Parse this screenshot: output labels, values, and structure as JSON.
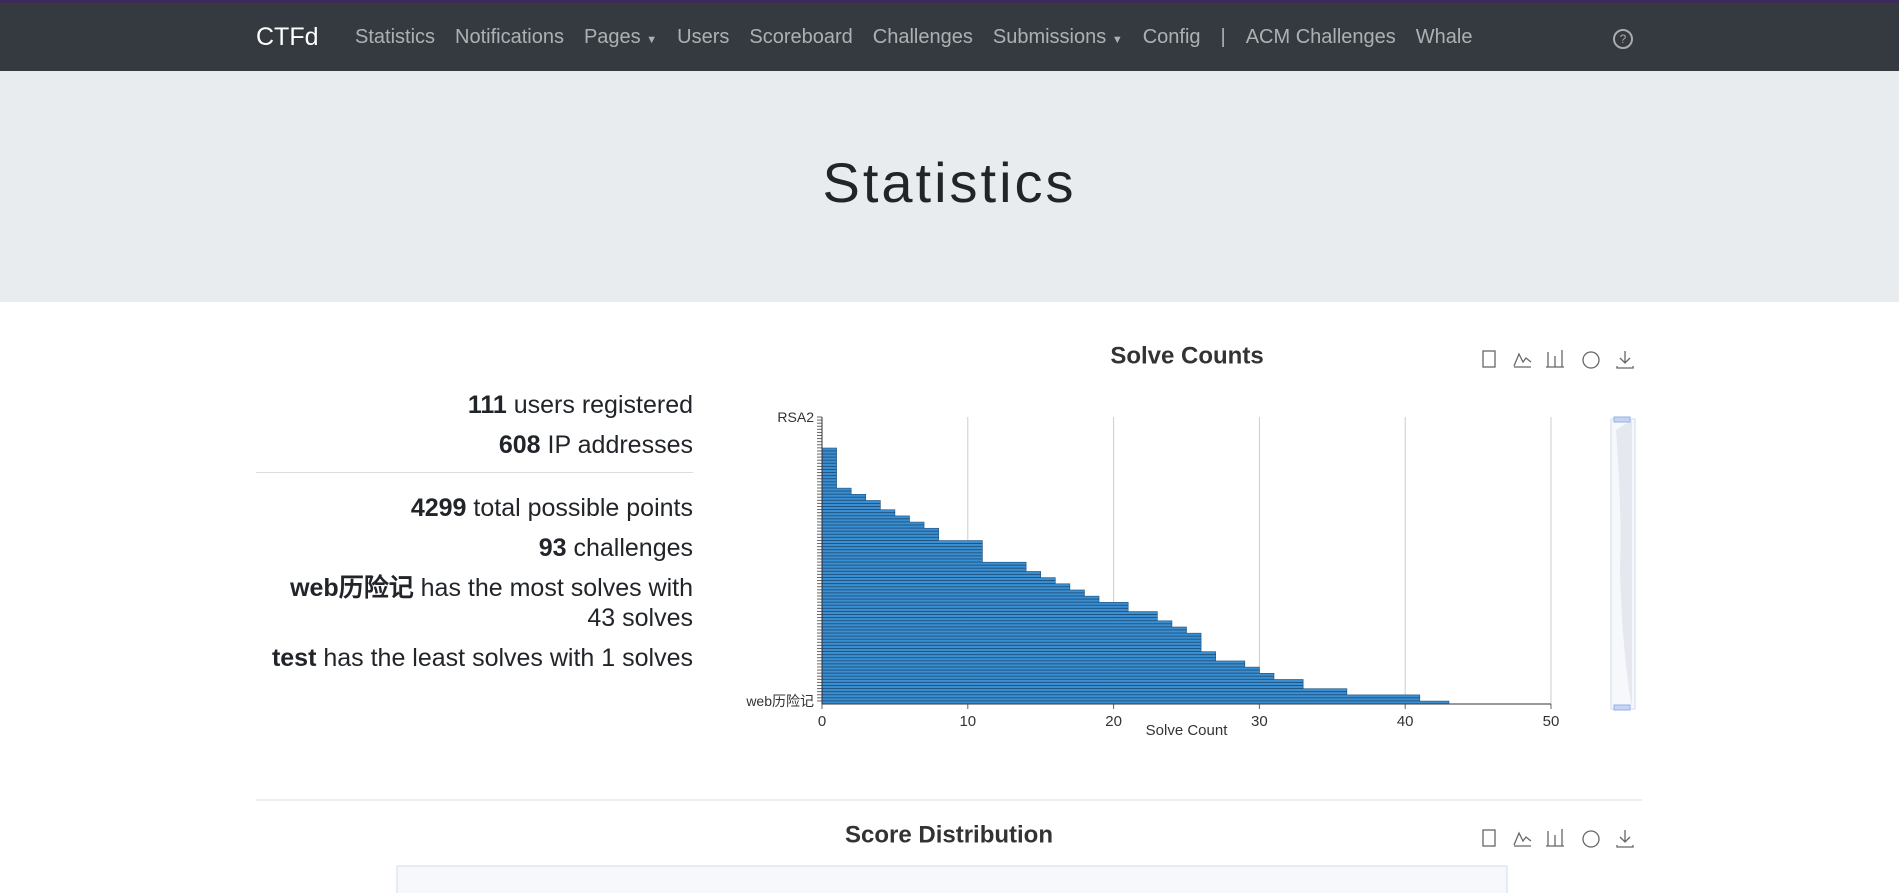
{
  "nav": {
    "brand": "CTFd",
    "items": [
      "Statistics",
      "Notifications",
      "Pages",
      "Users",
      "Scoreboard",
      "Challenges",
      "Submissions",
      "Config",
      "|",
      "ACM Challenges",
      "Whale"
    ]
  },
  "header": {
    "title": "Statistics"
  },
  "stats": [
    {
      "value": "111",
      "text": "users registered"
    },
    {
      "value": "608",
      "text": "IP addresses"
    },
    {
      "value": "4299",
      "text": "total possible points"
    },
    {
      "value": "93",
      "text": "challenges"
    },
    {
      "value": "web历险记",
      "text": "has the most solves with 43 solves"
    },
    {
      "value": "test",
      "text": "has the least solves with 1 solves"
    }
  ],
  "chart_data": {
    "type": "hbar",
    "title": "Solve Counts",
    "xlabel": "Solve Count",
    "color": "#3a8ed2",
    "xlim": [
      0,
      50
    ],
    "xticks": [
      0,
      10,
      20,
      30,
      40,
      50
    ],
    "grid": true,
    "categories": [
      "RSA2",
      null,
      null,
      null,
      null,
      null,
      null,
      null,
      null,
      null,
      null,
      null,
      null,
      null,
      null,
      null,
      null,
      null,
      null,
      null,
      null,
      null,
      null,
      null,
      null,
      null,
      null,
      null,
      null,
      null,
      null,
      null,
      null,
      null,
      null,
      null,
      null,
      null,
      null,
      null,
      null,
      null,
      null,
      null,
      null,
      null,
      null,
      null,
      null,
      null,
      null,
      null,
      null,
      null,
      null,
      null,
      null,
      null,
      null,
      null,
      null,
      null,
      null,
      null,
      null,
      null,
      null,
      null,
      null,
      null,
      null,
      null,
      null,
      null,
      null,
      null,
      null,
      null,
      null,
      null,
      null,
      null,
      null,
      null,
      null,
      null,
      null,
      null,
      null,
      null,
      null,
      null,
      "web历险记"
    ],
    "values": [
      0,
      0,
      0,
      0,
      0,
      0,
      0,
      0,
      0,
      0,
      1,
      1,
      1,
      1,
      1,
      1,
      1,
      1,
      1,
      1,
      1,
      1,
      1,
      2,
      2,
      3,
      3,
      4,
      4,
      4,
      5,
      5,
      6,
      6,
      7,
      7,
      8,
      8,
      8,
      8,
      11,
      11,
      11,
      11,
      11,
      11,
      11,
      14,
      14,
      14,
      15,
      15,
      16,
      16,
      17,
      17,
      18,
      18,
      19,
      19,
      21,
      21,
      21,
      23,
      23,
      23,
      24,
      24,
      25,
      25,
      26,
      26,
      26,
      26,
      26,
      26,
      27,
      27,
      27,
      29,
      29,
      30,
      30,
      31,
      31,
      33,
      33,
      33,
      36,
      36,
      41,
      41,
      43
    ]
  },
  "section2": {
    "title": "Score Distribution"
  }
}
